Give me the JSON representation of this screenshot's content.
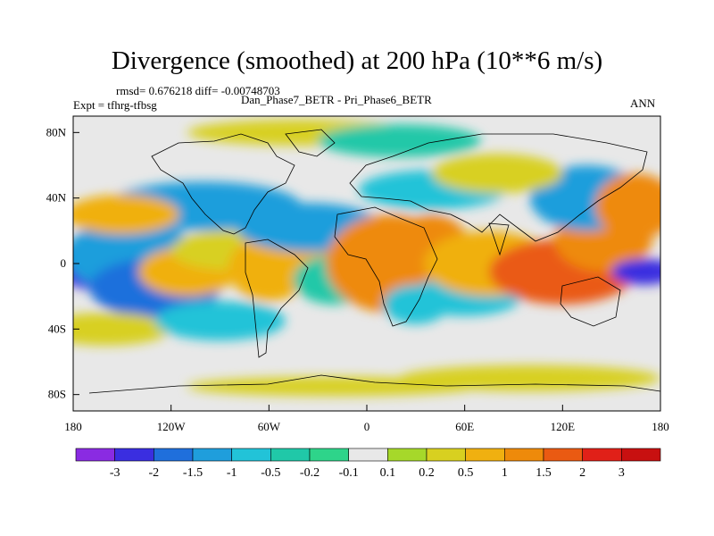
{
  "title": "Divergence (smoothed) at 200 hPa (10**6 m/s)",
  "stats_text": "rmsd= 0.676218 diff= -0.00748703",
  "expt_text": "Expt = tfhrg-tfbsg",
  "comparison_text": "Dan_Phase7_BETR - Pri_Phase6_BETR",
  "period_text": "ANN",
  "colors": {
    "bins": [
      "#8a2be2",
      "#3a2ee0",
      "#1f6fdc",
      "#1f9edc",
      "#22c3d8",
      "#20c8a8",
      "#2ed48a",
      "#e8e8e8",
      "#a6d82a",
      "#d8d020",
      "#f0b010",
      "#ee8a0a",
      "#ea5a12",
      "#e02018",
      "#c81010"
    ],
    "zero_bin": "#e8e8e8",
    "coast": "#000000"
  },
  "chart_data": {
    "type": "heatmap",
    "variable": "Divergence (smoothed) at 200 hPa",
    "units": "10**6 m/s",
    "x_range": [
      -180,
      180
    ],
    "y_range": [
      -90,
      90
    ],
    "xticks": [
      {
        "value": -180,
        "label": "180"
      },
      {
        "value": -120,
        "label": "120W"
      },
      {
        "value": -60,
        "label": "60W"
      },
      {
        "value": 0,
        "label": "0"
      },
      {
        "value": 60,
        "label": "60E"
      },
      {
        "value": 120,
        "label": "120E"
      },
      {
        "value": 180,
        "label": "180"
      }
    ],
    "yticks": [
      {
        "value": 80,
        "label": "80N"
      },
      {
        "value": 40,
        "label": "40N"
      },
      {
        "value": 0,
        "label": "0"
      },
      {
        "value": -40,
        "label": "40S"
      },
      {
        "value": -80,
        "label": "80S"
      }
    ],
    "colorbar_levels": [
      "-3",
      "-2",
      "-1.5",
      "-1",
      "-0.5",
      "-0.2",
      "-0.1",
      "0.1",
      "0.2",
      "0.5",
      "1",
      "1.5",
      "2",
      "3"
    ],
    "regions": [
      {
        "lon": -165,
        "lat": 0,
        "w": 28,
        "h": 16,
        "value": -2.2
      },
      {
        "lon": -145,
        "lat": 5,
        "w": 40,
        "h": 22,
        "value": -1.2
      },
      {
        "lon": -130,
        "lat": -15,
        "w": 40,
        "h": 18,
        "value": -1.8
      },
      {
        "lon": -110,
        "lat": -5,
        "w": 30,
        "h": 15,
        "value": 0.6
      },
      {
        "lon": -85,
        "lat": 8,
        "w": 35,
        "h": 12,
        "value": 0.4
      },
      {
        "lon": -60,
        "lat": -3,
        "w": 25,
        "h": 20,
        "value": 1.0
      },
      {
        "lon": -40,
        "lat": 5,
        "w": 25,
        "h": 15,
        "value": 0.6
      },
      {
        "lon": -35,
        "lat": 22,
        "w": 45,
        "h": 15,
        "value": -1.0
      },
      {
        "lon": -100,
        "lat": 35,
        "w": 60,
        "h": 15,
        "value": -1.0
      },
      {
        "lon": -150,
        "lat": 30,
        "w": 35,
        "h": 12,
        "value": 0.6
      },
      {
        "lon": -160,
        "lat": -40,
        "w": 40,
        "h": 10,
        "value": 0.5
      },
      {
        "lon": -90,
        "lat": -35,
        "w": 40,
        "h": 12,
        "value": -0.5
      },
      {
        "lon": -20,
        "lat": -10,
        "w": 25,
        "h": 15,
        "value": -0.4
      },
      {
        "lon": 15,
        "lat": 0,
        "w": 40,
        "h": 30,
        "value": 1.4
      },
      {
        "lon": 40,
        "lat": 5,
        "w": 25,
        "h": 25,
        "value": 1.2
      },
      {
        "lon": 30,
        "lat": -25,
        "w": 20,
        "h": 12,
        "value": -0.8
      },
      {
        "lon": 60,
        "lat": -20,
        "w": 35,
        "h": 12,
        "value": -0.5
      },
      {
        "lon": 75,
        "lat": 0,
        "w": 40,
        "h": 20,
        "value": 1.0
      },
      {
        "lon": 120,
        "lat": -5,
        "w": 45,
        "h": 20,
        "value": 1.8
      },
      {
        "lon": 145,
        "lat": 15,
        "w": 30,
        "h": 20,
        "value": 1.5
      },
      {
        "lon": 135,
        "lat": 40,
        "w": 35,
        "h": 20,
        "value": -1.0
      },
      {
        "lon": 165,
        "lat": 35,
        "w": 25,
        "h": 20,
        "value": 1.2
      },
      {
        "lon": 170,
        "lat": -5,
        "w": 20,
        "h": 8,
        "value": -2.2
      },
      {
        "lon": 40,
        "lat": 45,
        "w": 45,
        "h": 12,
        "value": -0.5
      },
      {
        "lon": 80,
        "lat": 55,
        "w": 40,
        "h": 12,
        "value": 0.4
      },
      {
        "lon": -40,
        "lat": 80,
        "w": 70,
        "h": 8,
        "value": 0.4
      },
      {
        "lon": 20,
        "lat": 75,
        "w": 50,
        "h": 10,
        "value": -0.4
      },
      {
        "lon": -20,
        "lat": -75,
        "w": 90,
        "h": 6,
        "value": 0.4
      },
      {
        "lon": 100,
        "lat": -70,
        "w": 80,
        "h": 8,
        "value": 0.3
      }
    ]
  }
}
